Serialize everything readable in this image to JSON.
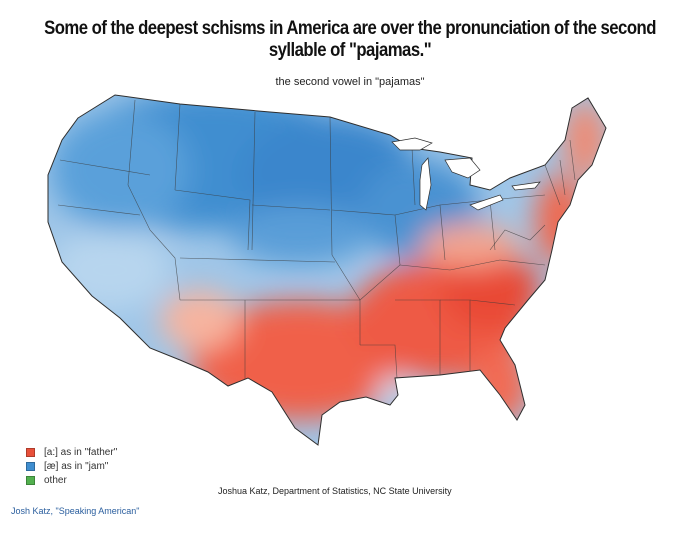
{
  "headline": "Some of the deepest schisms in America are over the pronunciation of the second syllable of \"pajamas.\"",
  "map": {
    "title": "the second vowel in \"pajamas\"",
    "colors": {
      "father": "#f0604a",
      "jam": "#3f8ed0",
      "jam_light": "#a9cdeb",
      "other": "#52b04e",
      "borders": "#3a3a3a"
    }
  },
  "legend": [
    {
      "label": "[a:] as in \"father\"",
      "color": "#e8503a"
    },
    {
      "label": "[æ] as in \"jam\"",
      "color": "#3f8ed0"
    },
    {
      "label": "other",
      "color": "#52b04e"
    }
  ],
  "credit": "Joshua Katz, Department of Statistics, NC State University",
  "source": "Josh Katz, \"Speaking American\""
}
